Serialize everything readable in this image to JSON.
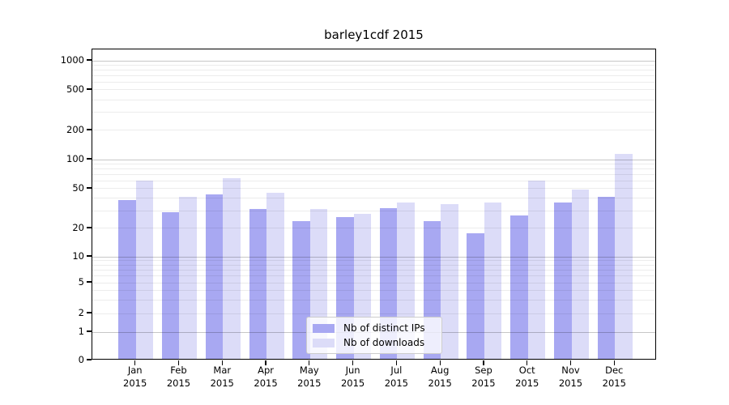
{
  "chart_data": {
    "type": "bar",
    "title": "barley1cdf 2015",
    "categories": [
      "Jan 2015",
      "Feb 2015",
      "Mar 2015",
      "Apr 2015",
      "May 2015",
      "Jun 2015",
      "Jul 2015",
      "Aug 2015",
      "Sep 2015",
      "Oct 2015",
      "Nov 2015",
      "Dec 2015"
    ],
    "series": [
      {
        "name": "Nb of distinct IPs",
        "color": "#a8a8f2",
        "values": [
          37,
          28,
          42,
          30,
          23,
          25,
          31,
          23,
          17,
          26,
          35,
          40
        ]
      },
      {
        "name": "Nb of downloads",
        "color": "#dcdcf8",
        "values": [
          58,
          40,
          62,
          44,
          30,
          27,
          35,
          34,
          35,
          58,
          47,
          110
        ]
      }
    ],
    "y_ticks": [
      0,
      1,
      2,
      5,
      10,
      20,
      50,
      100,
      200,
      500,
      1000
    ],
    "y_scale": "symlog",
    "ylim": [
      0,
      1300
    ],
    "xlabel": "",
    "ylabel": "",
    "grid": true,
    "legend_position": "lower center",
    "colors": {
      "background": "#ffffff",
      "axis": "#000000",
      "grid_major": "#c9c9c9",
      "grid_minor": "#ececec"
    }
  }
}
